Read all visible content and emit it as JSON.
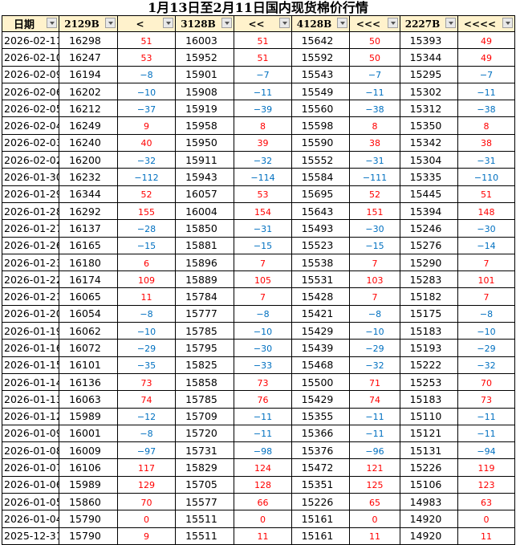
{
  "title": "1月13日至2月11日国内现货棉价行情",
  "colors": {
    "header_bg": "#fff2cc",
    "positive": "#ff0000",
    "negative": "#0070c0"
  },
  "columns": [
    "日期",
    "2129B",
    "<",
    "3128B",
    "<<",
    "4128B",
    "<<<",
    "2227B",
    "<<<<"
  ],
  "rows": [
    [
      "2026-02-11",
      16298,
      51,
      16003,
      51,
      15642,
      50,
      15393,
      49
    ],
    [
      "2026-02-10",
      16247,
      53,
      15952,
      51,
      15592,
      50,
      15344,
      49
    ],
    [
      "2026-02-09",
      16194,
      -8,
      15901,
      -7,
      15543,
      -7,
      15295,
      -7
    ],
    [
      "2026-02-06",
      16202,
      -10,
      15908,
      -11,
      15549,
      -11,
      15302,
      -11
    ],
    [
      "2026-02-05",
      16212,
      -37,
      15919,
      -39,
      15560,
      -38,
      15312,
      -38
    ],
    [
      "2026-02-04",
      16249,
      9,
      15958,
      8,
      15598,
      8,
      15350,
      8
    ],
    [
      "2026-02-03",
      16240,
      40,
      15950,
      39,
      15590,
      38,
      15342,
      38
    ],
    [
      "2026-02-02",
      16200,
      -32,
      15911,
      -32,
      15552,
      -31,
      15304,
      -31
    ],
    [
      "2026-01-30",
      16232,
      -112,
      15943,
      -114,
      15584,
      -111,
      15335,
      -110
    ],
    [
      "2026-01-29",
      16344,
      52,
      16057,
      53,
      15695,
      52,
      15445,
      51
    ],
    [
      "2026-01-28",
      16292,
      155,
      16004,
      154,
      15643,
      151,
      15394,
      148
    ],
    [
      "2026-01-27",
      16137,
      -28,
      15850,
      -31,
      15493,
      -30,
      15246,
      -30
    ],
    [
      "2026-01-26",
      16165,
      -15,
      15881,
      -15,
      15523,
      -15,
      15276,
      -14
    ],
    [
      "2026-01-23",
      16180,
      6,
      15896,
      7,
      15538,
      7,
      15290,
      7
    ],
    [
      "2026-01-22",
      16174,
      109,
      15889,
      105,
      15531,
      103,
      15283,
      101
    ],
    [
      "2026-01-21",
      16065,
      11,
      15784,
      7,
      15428,
      7,
      15182,
      7
    ],
    [
      "2026-01-20",
      16054,
      -8,
      15777,
      -8,
      15421,
      -8,
      15175,
      -8
    ],
    [
      "2026-01-19",
      16062,
      -10,
      15785,
      -10,
      15429,
      -10,
      15183,
      -10
    ],
    [
      "2026-01-16",
      16072,
      -29,
      15795,
      -30,
      15439,
      -29,
      15193,
      -29
    ],
    [
      "2026-01-15",
      16101,
      -35,
      15825,
      -33,
      15468,
      -32,
      15222,
      -32
    ],
    [
      "2026-01-14",
      16136,
      73,
      15858,
      73,
      15500,
      71,
      15253,
      70
    ],
    [
      "2026-01-13",
      16063,
      74,
      15785,
      76,
      15429,
      74,
      15183,
      73
    ],
    [
      "2026-01-12",
      15989,
      -12,
      15709,
      -11,
      15355,
      -11,
      15110,
      -11
    ],
    [
      "2026-01-09",
      16001,
      -8,
      15720,
      -11,
      15366,
      -11,
      15121,
      -11
    ],
    [
      "2026-01-08",
      16009,
      -97,
      15731,
      -98,
      15376,
      -96,
      15131,
      -94
    ],
    [
      "2026-01-07",
      16106,
      117,
      15829,
      124,
      15472,
      121,
      15226,
      119
    ],
    [
      "2026-01-06",
      15989,
      129,
      15705,
      128,
      15351,
      125,
      15106,
      123
    ],
    [
      "2026-01-05",
      15860,
      70,
      15577,
      66,
      15226,
      65,
      14983,
      63
    ],
    [
      "2026-01-04",
      15790,
      0,
      15511,
      0,
      15161,
      0,
      14920,
      0
    ],
    [
      "2025-12-31",
      15790,
      9,
      15511,
      11,
      15161,
      11,
      14920,
      11
    ]
  ]
}
